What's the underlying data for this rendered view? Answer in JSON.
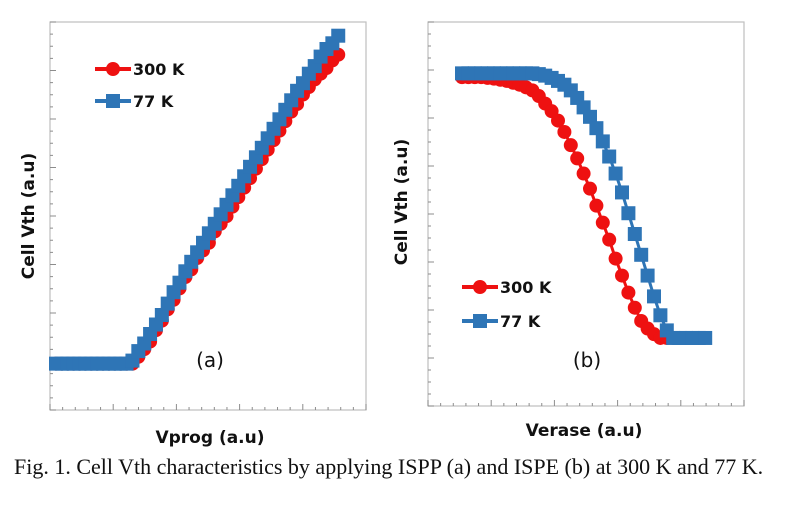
{
  "caption": "Fig. 1. Cell Vth characteristics by applying ISPP (a) and ISPE (b) at 300 K and 77 K.",
  "colors": {
    "red": "#ee1111",
    "blue": "#2e75b6"
  },
  "chart_data": [
    {
      "type": "line",
      "panel_label": "(a)",
      "xlabel": "Vprog (a.u)",
      "ylabel": "Cell Vth (a.u)",
      "xlim": [
        0,
        1
      ],
      "ylim": [
        0,
        1
      ],
      "grid": false,
      "legend_position": "top-left",
      "series": [
        {
          "name": "300 K",
          "color": "#ee1111",
          "marker": "circle",
          "x": [
            0,
            0.02,
            0.04,
            0.06,
            0.08,
            0.1,
            0.12,
            0.14,
            0.16,
            0.18,
            0.2,
            0.22,
            0.24,
            0.26,
            0.28,
            0.3,
            0.32,
            0.34,
            0.36,
            0.38,
            0.4,
            0.42,
            0.44,
            0.46,
            0.48,
            0.5,
            0.52,
            0.54,
            0.56,
            0.58,
            0.6,
            0.62,
            0.64,
            0.66,
            0.68,
            0.7,
            0.72,
            0.74,
            0.76,
            0.78,
            0.8,
            0.82,
            0.84,
            0.86,
            0.88,
            0.9,
            0.92,
            0.94,
            0.96
          ],
          "y": [
            0.122,
            0.122,
            0.122,
            0.122,
            0.122,
            0.122,
            0.122,
            0.122,
            0.122,
            0.122,
            0.122,
            0.122,
            0.122,
            0.122,
            0.14,
            0.16,
            0.18,
            0.21,
            0.235,
            0.265,
            0.29,
            0.32,
            0.35,
            0.37,
            0.4,
            0.42,
            0.44,
            0.47,
            0.49,
            0.51,
            0.535,
            0.56,
            0.585,
            0.61,
            0.635,
            0.66,
            0.685,
            0.71,
            0.735,
            0.76,
            0.785,
            0.805,
            0.83,
            0.85,
            0.87,
            0.885,
            0.9,
            0.92,
            0.935
          ]
        },
        {
          "name": "77 K",
          "color": "#2e75b6",
          "marker": "square",
          "x": [
            0,
            0.02,
            0.04,
            0.06,
            0.08,
            0.1,
            0.12,
            0.14,
            0.16,
            0.18,
            0.2,
            0.22,
            0.24,
            0.26,
            0.28,
            0.3,
            0.32,
            0.34,
            0.36,
            0.38,
            0.4,
            0.42,
            0.44,
            0.46,
            0.48,
            0.5,
            0.52,
            0.54,
            0.56,
            0.58,
            0.6,
            0.62,
            0.64,
            0.66,
            0.68,
            0.7,
            0.72,
            0.74,
            0.76,
            0.78,
            0.8,
            0.82,
            0.84,
            0.86,
            0.88,
            0.9,
            0.92,
            0.94,
            0.96
          ],
          "y": [
            0.122,
            0.122,
            0.122,
            0.122,
            0.122,
            0.122,
            0.122,
            0.122,
            0.122,
            0.122,
            0.122,
            0.122,
            0.122,
            0.13,
            0.155,
            0.175,
            0.2,
            0.225,
            0.25,
            0.28,
            0.31,
            0.335,
            0.365,
            0.39,
            0.415,
            0.44,
            0.465,
            0.49,
            0.515,
            0.54,
            0.565,
            0.59,
            0.615,
            0.64,
            0.665,
            0.69,
            0.715,
            0.74,
            0.765,
            0.79,
            0.815,
            0.84,
            0.86,
            0.885,
            0.905,
            0.93,
            0.95,
            0.965,
            0.985
          ]
        }
      ]
    },
    {
      "type": "line",
      "panel_label": "(b)",
      "xlabel": "Verase (a.u)",
      "ylabel": "Cell Vth (a.u)",
      "xlim": [
        0,
        1
      ],
      "ylim": [
        0,
        1
      ],
      "grid": false,
      "legend_position": "bottom-left",
      "series": [
        {
          "name": "300 K",
          "color": "#ee1111",
          "marker": "circle",
          "x": [
            0,
            0.025,
            0.05,
            0.075,
            0.1,
            0.125,
            0.15,
            0.175,
            0.2,
            0.225,
            0.25,
            0.275,
            0.3,
            0.325,
            0.35,
            0.375,
            0.4,
            0.425,
            0.45,
            0.475,
            0.5,
            0.525,
            0.55,
            0.575,
            0.6,
            0.625,
            0.65,
            0.675,
            0.7,
            0.725,
            0.75,
            0.775,
            0.8,
            0.825,
            0.85
          ],
          "y": [
            0.87,
            0.87,
            0.87,
            0.87,
            0.868,
            0.866,
            0.863,
            0.86,
            0.855,
            0.85,
            0.843,
            0.835,
            0.82,
            0.8,
            0.78,
            0.755,
            0.725,
            0.69,
            0.655,
            0.615,
            0.575,
            0.53,
            0.485,
            0.44,
            0.39,
            0.345,
            0.3,
            0.26,
            0.225,
            0.205,
            0.19,
            0.18,
            0.18,
            0.18,
            0.18
          ]
        },
        {
          "name": "77 K",
          "color": "#2e75b6",
          "marker": "square",
          "x": [
            0,
            0.025,
            0.05,
            0.075,
            0.1,
            0.125,
            0.15,
            0.175,
            0.2,
            0.225,
            0.25,
            0.275,
            0.3,
            0.325,
            0.35,
            0.375,
            0.4,
            0.425,
            0.45,
            0.475,
            0.5,
            0.525,
            0.55,
            0.575,
            0.6,
            0.625,
            0.65,
            0.675,
            0.7,
            0.725,
            0.75,
            0.775,
            0.8,
            0.825,
            0.85,
            0.875,
            0.9,
            0.925,
            0.95
          ],
          "y": [
            0.88,
            0.88,
            0.88,
            0.88,
            0.88,
            0.88,
            0.88,
            0.88,
            0.88,
            0.88,
            0.88,
            0.88,
            0.878,
            0.874,
            0.868,
            0.86,
            0.85,
            0.835,
            0.815,
            0.79,
            0.765,
            0.735,
            0.7,
            0.66,
            0.615,
            0.565,
            0.51,
            0.455,
            0.4,
            0.345,
            0.29,
            0.24,
            0.2,
            0.18,
            0.18,
            0.18,
            0.18,
            0.18,
            0.18
          ]
        }
      ]
    }
  ]
}
